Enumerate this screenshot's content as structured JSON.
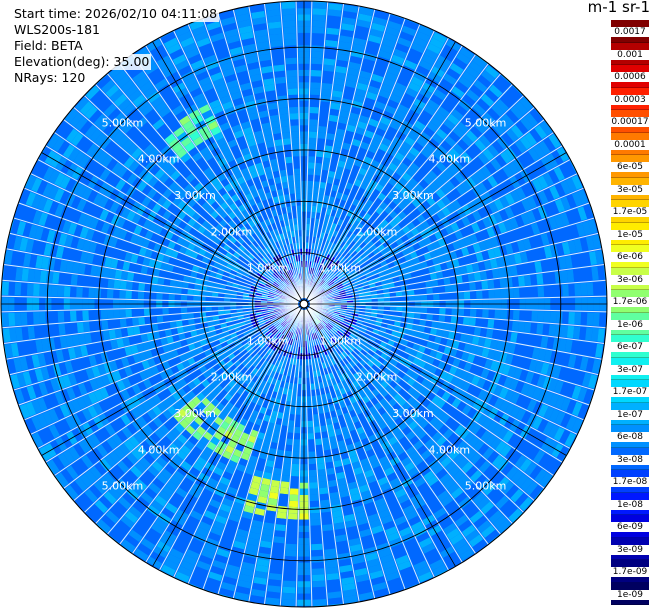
{
  "info": {
    "start_time": "Start time: 2026/02/10 04:11:08",
    "instrument": "WLS200s-181",
    "field": "Field: BETA",
    "elevation": "Elevation(deg): 35.00",
    "nrays": "NRays: 120"
  },
  "colorbar": {
    "title": "m-1 sr-1",
    "labels": [
      "0.0017",
      "0.001",
      "0.0006",
      "0.0003",
      "0.00017",
      "0.0001",
      "6e-05",
      "3e-05",
      "1.7e-05",
      "1e-05",
      "6e-06",
      "3e-06",
      "1.7e-06",
      "1e-06",
      "6e-07",
      "3e-07",
      "1.7e-07",
      "1e-07",
      "6e-08",
      "3e-08",
      "1.7e-08",
      "1e-08",
      "6e-09",
      "3e-09",
      "1.7e-09",
      "1e-09"
    ],
    "colors": [
      "#800000",
      "#b40000",
      "#e00000",
      "#ff2000",
      "#ff5000",
      "#ff7a00",
      "#ff9800",
      "#ffb400",
      "#ffd400",
      "#ffec00",
      "#f0ff20",
      "#c8ff48",
      "#90ff70",
      "#60ffa0",
      "#30ffd0",
      "#10f0f0",
      "#00d8ff",
      "#00b0ff",
      "#0090ff",
      "#0068ff",
      "#0040ff",
      "#0018ff",
      "#0000e0",
      "#0000b0",
      "#000080",
      "#000060"
    ]
  },
  "chart_data": {
    "type": "heatmap",
    "projection": "polar (PPI scan)",
    "field": "BETA",
    "units": "m-1 sr-1",
    "elevation_deg": 35.0,
    "n_rays": 120,
    "range_rings_km": [
      1.0,
      2.0,
      3.0,
      4.0,
      5.0
    ],
    "range_ring_labels": [
      "1.00km",
      "2.00km",
      "3.00km",
      "4.00km",
      "5.00km"
    ],
    "max_range_km": 5.9,
    "spokes_deg": [
      0,
      30,
      60,
      90,
      120,
      150,
      180,
      210,
      240,
      270,
      300,
      330
    ],
    "background_range": [
      3e-08,
      1e-07
    ],
    "features": [
      {
        "description": "enhanced backscatter arc",
        "azimuth_deg": [
          200,
          230
        ],
        "range_km": [
          2.6,
          3.4
        ],
        "value": 1.7e-06
      },
      {
        "description": "enhanced backscatter patch",
        "azimuth_deg": [
          180,
          195
        ],
        "range_km": [
          3.4,
          4.2
        ],
        "value": 3e-06
      },
      {
        "description": "enhanced backscatter streak",
        "azimuth_deg": [
          320,
          335
        ],
        "range_km": [
          3.7,
          4.3
        ],
        "value": 1e-06
      },
      {
        "description": "near-range streak",
        "azimuth_deg": [
          125,
          150
        ],
        "range_km": [
          0.1,
          0.5
        ],
        "value": 6e-07
      }
    ]
  }
}
